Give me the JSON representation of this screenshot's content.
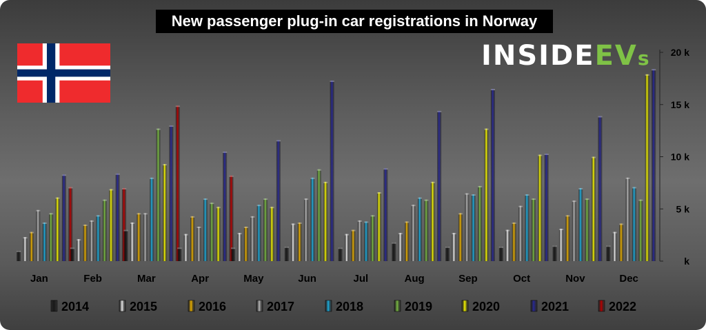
{
  "title": "New passenger plug-in car registrations in Norway",
  "logo": {
    "text_a": "INSIDE",
    "text_b": "EV",
    "text_c": "s"
  },
  "colors": {
    "2014": "#1a1a1a",
    "2015": "#f2f2f2",
    "2016": "#f5b800",
    "2017": "#bdbdbd",
    "2018": "#1fb4e6",
    "2019": "#7fc246",
    "2020": "#ffff00",
    "2021": "#2a2a9c",
    "2022": "#c00000"
  },
  "chart_data": {
    "type": "bar",
    "categories": [
      "Jan",
      "Feb",
      "Mar",
      "Apr",
      "May",
      "Jun",
      "Jul",
      "Aug",
      "Sep",
      "Oct",
      "Nov",
      "Dec"
    ],
    "ylim": [
      0,
      20000
    ],
    "yticks": [
      {
        "value": 0,
        "label": "k"
      },
      {
        "value": 5000,
        "label": "5 k"
      },
      {
        "value": 10000,
        "label": "10 k"
      },
      {
        "value": 15000,
        "label": "15 k"
      },
      {
        "value": 20000,
        "label": "20 k"
      }
    ],
    "legend_position": "bottom",
    "series": [
      {
        "name": "2014",
        "values": [
          1000,
          1300,
          3000,
          1300,
          1300,
          1400,
          1300,
          1800,
          1400,
          1400,
          1500,
          1500
        ]
      },
      {
        "name": "2015",
        "values": [
          2300,
          2100,
          3700,
          2600,
          2700,
          3600,
          2600,
          2700,
          2700,
          3000,
          3100,
          2800
        ]
      },
      {
        "name": "2016",
        "values": [
          2800,
          3500,
          4600,
          4300,
          3300,
          3700,
          3000,
          3800,
          4600,
          3700,
          4400,
          3600
        ]
      },
      {
        "name": "2017",
        "values": [
          4900,
          3900,
          4600,
          3300,
          4300,
          6000,
          3900,
          5400,
          6500,
          5300,
          5800,
          8000
        ]
      },
      {
        "name": "2018",
        "values": [
          3700,
          4400,
          8000,
          6000,
          5400,
          8000,
          3800,
          6100,
          6400,
          6400,
          7000,
          7100
        ]
      },
      {
        "name": "2019",
        "values": [
          4600,
          5900,
          12700,
          5600,
          6000,
          8800,
          4400,
          5900,
          7200,
          6000,
          6000,
          5900
        ]
      },
      {
        "name": "2020",
        "values": [
          6100,
          6900,
          9300,
          5200,
          5200,
          7600,
          6600,
          7600,
          12700,
          10200,
          10000,
          17900
        ]
      },
      {
        "name": "2021",
        "values": [
          8300,
          8400,
          13000,
          10500,
          11600,
          17300,
          8900,
          14400,
          16500,
          10300,
          13900,
          18400
        ]
      },
      {
        "name": "2022",
        "values": [
          7100,
          7000,
          14900,
          8200,
          null,
          null,
          null,
          null,
          null,
          null,
          null,
          null
        ]
      }
    ]
  }
}
